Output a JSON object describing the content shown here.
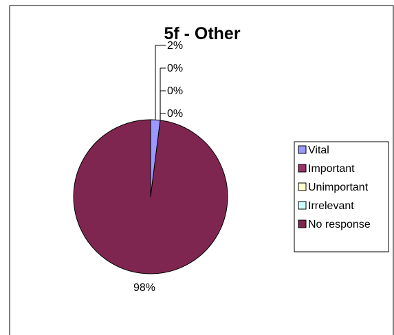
{
  "chart_data": {
    "type": "pie",
    "title": "5f - Other",
    "categories": [
      "Vital",
      "Important",
      "Unimportant",
      "Irrelevant",
      "No response"
    ],
    "values": [
      2,
      0,
      0,
      0,
      98
    ],
    "data_labels": [
      "2%",
      "0%",
      "0%",
      "0%",
      "98%"
    ],
    "colors": [
      "#9999ff",
      "#993366",
      "#ffffcc",
      "#ccffff",
      "#7f2650"
    ],
    "legend": {
      "position": "right",
      "entries": [
        "Vital",
        "Important",
        "Unimportant",
        "Irrelevant",
        "No response"
      ]
    },
    "grid": false,
    "border": true
  }
}
